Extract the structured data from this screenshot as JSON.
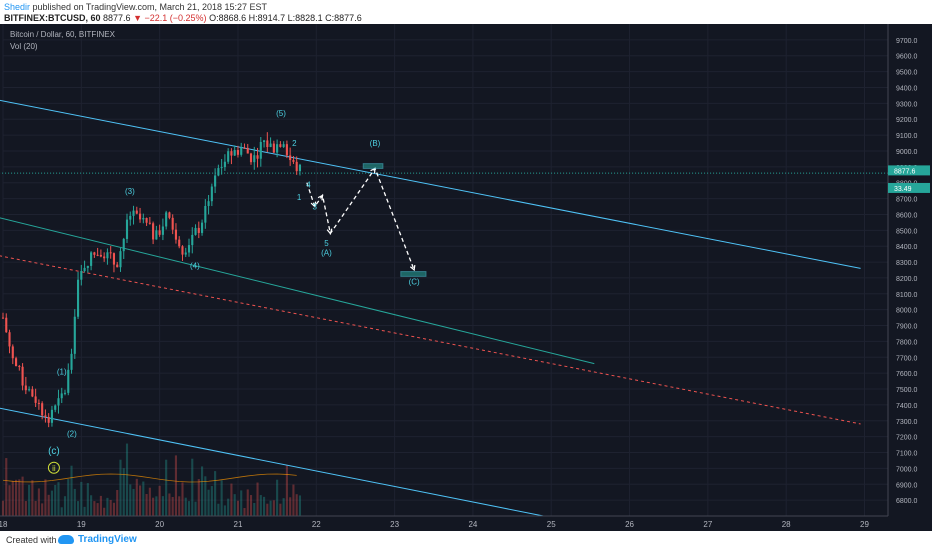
{
  "header": {
    "author": "Shedir",
    "published": "published on TradingView.com, March 21, 2018 15:27 EST",
    "symbol": "BITFINEX:BTCUSD, 60",
    "last": "8877.6",
    "change": "−22.1 (−0.25%)",
    "ohlc": "O:8868.6 H:8914.7 L:8828.1 C:8877.6"
  },
  "legend": {
    "title": "Bitcoin / Dollar, 60, BITFINEX",
    "volume": "Vol (20)"
  },
  "footer": {
    "created_with": "Created with",
    "brand": "TradingView"
  },
  "colors": {
    "background": "#131722",
    "up": "#26a69a",
    "down": "#ef5350",
    "wave_label": "#4dd0e1",
    "channel": "#4fc3f7",
    "dotted": "#ef5350"
  },
  "chart_data": {
    "type": "candlestick",
    "ylim": [
      6700,
      9800
    ],
    "xlim": [
      18.0,
      29.3
    ],
    "y_ticks": [
      6800,
      6900,
      7000,
      7100,
      7200,
      7300,
      7400,
      7500,
      7600,
      7700,
      7800,
      7900,
      8000,
      8100,
      8200,
      8300,
      8400,
      8500,
      8600,
      8700,
      8800,
      8900,
      9000,
      9100,
      9200,
      9300,
      9400,
      9500,
      9600,
      9700
    ],
    "x_ticks": [
      {
        "v": 18,
        "label": "18"
      },
      {
        "v": 19,
        "label": "19"
      },
      {
        "v": 20,
        "label": "20"
      },
      {
        "v": 21,
        "label": "21"
      },
      {
        "v": 22,
        "label": "22"
      },
      {
        "v": 23,
        "label": "23"
      },
      {
        "v": 24,
        "label": "24"
      },
      {
        "v": 25,
        "label": "25"
      },
      {
        "v": 26,
        "label": "26"
      },
      {
        "v": 27,
        "label": "27"
      },
      {
        "v": 28,
        "label": "28"
      },
      {
        "v": 29,
        "label": "29"
      }
    ],
    "price_tags": [
      {
        "price": 8877.6,
        "label": "8877.6",
        "color": "#26a69a"
      },
      {
        "price": 8830,
        "label": "33.49",
        "color": "#26a69a"
      }
    ],
    "price_line": 8877.6,
    "anchors": [
      {
        "x": 18.0,
        "p": 7950
      },
      {
        "x": 18.12,
        "p": 7700
      },
      {
        "x": 18.25,
        "p": 7550
      },
      {
        "x": 18.4,
        "p": 7450
      },
      {
        "x": 18.58,
        "p": 7300
      },
      {
        "x": 18.72,
        "p": 7420
      },
      {
        "x": 18.8,
        "p": 7500
      },
      {
        "x": 18.88,
        "p": 7750
      },
      {
        "x": 18.95,
        "p": 8150
      },
      {
        "x": 19.05,
        "p": 8300
      },
      {
        "x": 19.25,
        "p": 8380
      },
      {
        "x": 19.45,
        "p": 8280
      },
      {
        "x": 19.62,
        "p": 8600
      },
      {
        "x": 19.8,
        "p": 8550
      },
      {
        "x": 19.95,
        "p": 8450
      },
      {
        "x": 20.1,
        "p": 8600
      },
      {
        "x": 20.3,
        "p": 8380
      },
      {
        "x": 20.52,
        "p": 8530
      },
      {
        "x": 20.7,
        "p": 8850
      },
      {
        "x": 20.9,
        "p": 8980
      },
      {
        "x": 21.05,
        "p": 9020
      },
      {
        "x": 21.2,
        "p": 8950
      },
      {
        "x": 21.32,
        "p": 9060
      },
      {
        "x": 21.45,
        "p": 9020
      },
      {
        "x": 21.58,
        "p": 9080
      },
      {
        "x": 21.68,
        "p": 8920
      },
      {
        "x": 21.8,
        "p": 8877
      }
    ],
    "trendlines": [
      {
        "x1": 17.95,
        "p1": 9320,
        "x2": 28.95,
        "p2": 8260,
        "color": "#4fc3f7",
        "width": 1,
        "dash": ""
      },
      {
        "x1": 17.95,
        "p1": 8580,
        "x2": 25.55,
        "p2": 7660,
        "color": "#26a69a",
        "width": 1,
        "dash": ""
      },
      {
        "x1": 17.95,
        "p1": 7380,
        "x2": 24.9,
        "p2": 6700,
        "color": "#4fc3f7",
        "width": 1,
        "dash": ""
      },
      {
        "x1": 17.95,
        "p1": 8340,
        "x2": 28.95,
        "p2": 7280,
        "color": "#ef5350",
        "width": 1,
        "dash": "3,3"
      },
      {
        "x1": 17.95,
        "p1": 8860,
        "x2": 29.3,
        "p2": 8860,
        "color": "#26a69a",
        "width": 1,
        "dash": "1,2"
      }
    ],
    "projection": [
      {
        "x": 21.88,
        "p": 8800
      },
      {
        "x": 21.98,
        "p": 8650
      },
      {
        "x": 22.08,
        "p": 8720
      },
      {
        "x": 22.18,
        "p": 8480
      },
      {
        "x": 22.75,
        "p": 8890
      },
      {
        "x": 23.25,
        "p": 8250
      }
    ],
    "targets": [
      {
        "x1": 22.6,
        "x2": 22.85,
        "p1": 8920,
        "p2": 8890
      },
      {
        "x1": 23.08,
        "x2": 23.4,
        "p1": 8240,
        "p2": 8210
      }
    ],
    "wave_labels": [
      {
        "x": 21.55,
        "p": 9220,
        "text": "(5)"
      },
      {
        "x": 21.72,
        "p": 9030,
        "text": "2"
      },
      {
        "x": 21.9,
        "p": 8770,
        "text": "4"
      },
      {
        "x": 21.78,
        "p": 8690,
        "text": "1"
      },
      {
        "x": 21.98,
        "p": 8630,
        "text": "3"
      },
      {
        "x": 22.13,
        "p": 8400,
        "text": "5"
      },
      {
        "x": 22.13,
        "p": 8340,
        "text": "(A)"
      },
      {
        "x": 22.75,
        "p": 9030,
        "text": "(B)"
      },
      {
        "x": 23.25,
        "p": 8160,
        "text": "(C)"
      },
      {
        "x": 20.45,
        "p": 8260,
        "text": "(4)"
      },
      {
        "x": 19.62,
        "p": 8730,
        "text": "(3)"
      },
      {
        "x": 18.75,
        "p": 7590,
        "text": "(1)"
      },
      {
        "x": 18.88,
        "p": 7200,
        "text": "(2)"
      },
      {
        "x": 18.65,
        "p": 7090,
        "text": "(c)"
      },
      {
        "x": 18.65,
        "p": 6985,
        "text": "ii"
      }
    ]
  }
}
